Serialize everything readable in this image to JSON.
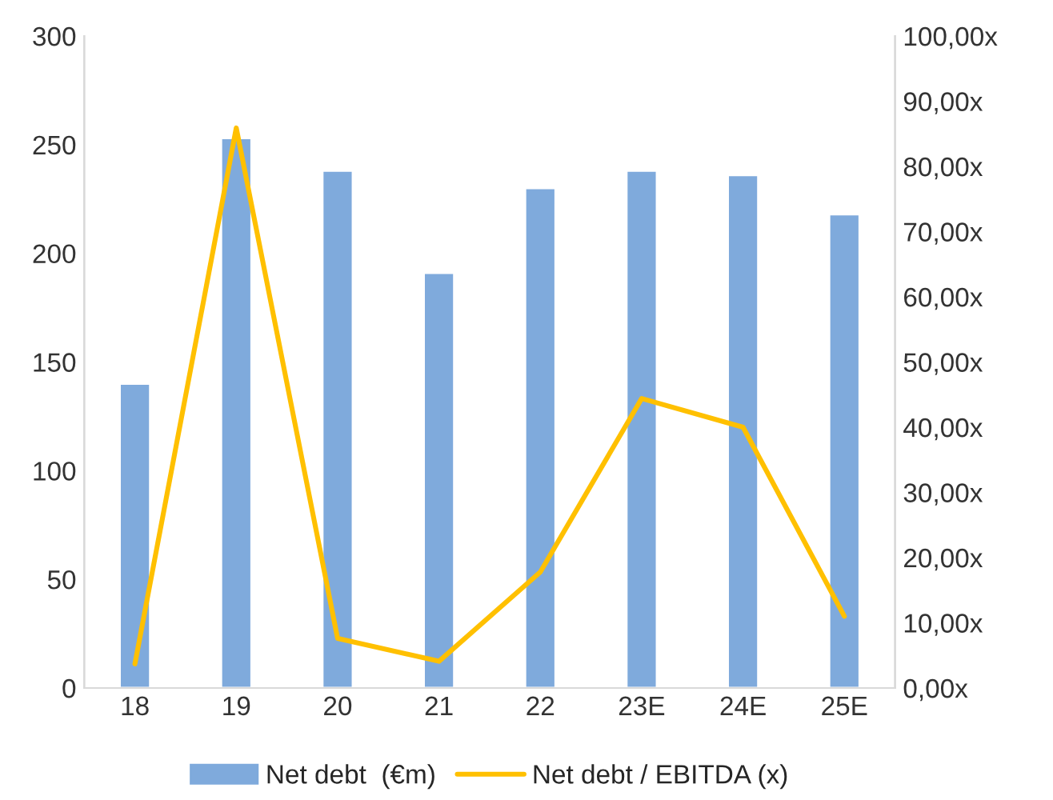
{
  "chart_data": {
    "type": "bar",
    "categories": [
      "18",
      "19",
      "20",
      "21",
      "22",
      "23E",
      "24E",
      "25E"
    ],
    "series": [
      {
        "name": "Net debt  (€m)",
        "color": "#7faadc",
        "values": [
          140,
          253,
          238,
          191,
          230,
          238,
          236,
          218
        ]
      },
      {
        "name": "Net debt / EBITDA (x)",
        "type": "line",
        "axis": "y2",
        "color": "#ffc000",
        "values": [
          3.7,
          85.9,
          7.6,
          4.1,
          17.8,
          44.4,
          40,
          11
        ]
      }
    ],
    "ylim": [
      0,
      300
    ],
    "yticks": [
      0,
      50,
      100,
      150,
      200,
      250,
      300
    ],
    "y2lim": [
      0,
      100
    ],
    "y2ticks": [
      {
        "value": 0,
        "label": "0,00x"
      },
      {
        "value": 10,
        "label": "10,00x"
      },
      {
        "value": 20,
        "label": "20,00x"
      },
      {
        "value": 30,
        "label": "30,00x"
      },
      {
        "value": 40,
        "label": "40,00x"
      },
      {
        "value": 50,
        "label": "50,00x"
      },
      {
        "value": 60,
        "label": "60,00x"
      },
      {
        "value": 70,
        "label": "70,00x"
      },
      {
        "value": 80,
        "label": "80,00x"
      },
      {
        "value": 90,
        "label": "90,00x"
      },
      {
        "value": 100,
        "label": "100,00x"
      }
    ],
    "legend": "bottom",
    "grid": false,
    "marker": "none",
    "line_style": "solid"
  }
}
